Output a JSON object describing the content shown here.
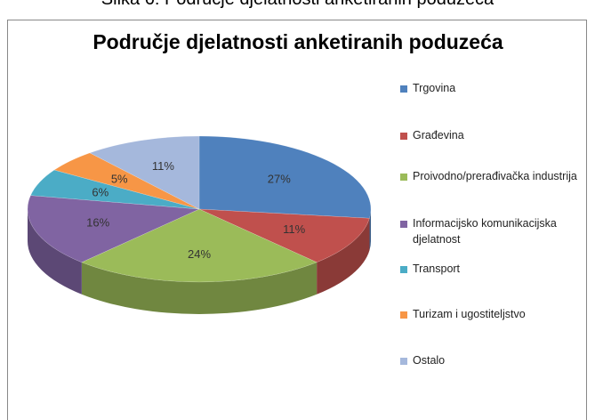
{
  "caption": "Slika 6: Područje djelatnosti anketiranih poduzeća",
  "chart_data": {
    "type": "pie",
    "title": "Područje djelatnosti anketiranih poduzeća",
    "categories": [
      "Trgovina",
      "Građevina",
      "Proivodno/prerađivačka industrija",
      "Informacijsko komunikacijska djelatnost",
      "Transport",
      "Turizam i ugostiteljstvo",
      "Ostalo"
    ],
    "values": [
      27,
      11,
      24,
      16,
      6,
      5,
      11
    ],
    "value_labels": [
      "27%",
      "11%",
      "24%",
      "16%",
      "6%",
      "5%",
      "11%"
    ],
    "colors": [
      "#4f81bd",
      "#c0504d",
      "#9bbb59",
      "#8064a2",
      "#4bacc6",
      "#f79646",
      "#a5b8dc"
    ],
    "legend": "right"
  }
}
